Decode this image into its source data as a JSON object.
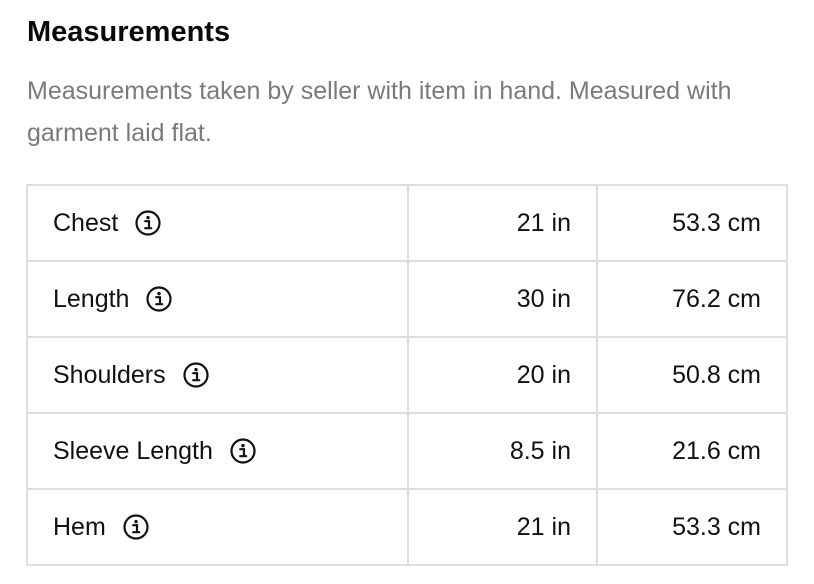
{
  "section": {
    "title": "Measurements",
    "description": "Measurements taken by seller with item in hand. Measured with garment laid flat."
  },
  "icons": {
    "info": "info-circle-icon"
  },
  "colors": {
    "text": "#111111",
    "muted": "#7a7a7a",
    "border": "#dedede"
  },
  "rows": [
    {
      "label": "Chest",
      "inches": "21 in",
      "cm": "53.3 cm"
    },
    {
      "label": "Length",
      "inches": "30 in",
      "cm": "76.2 cm"
    },
    {
      "label": "Shoulders",
      "inches": "20 in",
      "cm": "50.8 cm"
    },
    {
      "label": "Sleeve Length",
      "inches": "8.5 in",
      "cm": "21.6 cm"
    },
    {
      "label": "Hem",
      "inches": "21 in",
      "cm": "53.3 cm"
    }
  ]
}
